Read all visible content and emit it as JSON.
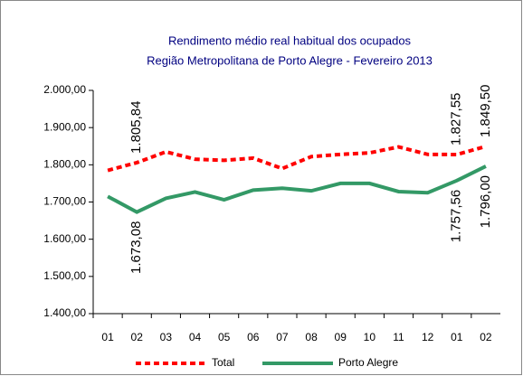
{
  "chart_data": {
    "type": "line",
    "title": "Rendimento médio real habitual dos ocupados",
    "subtitle": "Região Metropolitana de Porto Alegre - Fevereiro 2013",
    "categories": [
      "01",
      "02",
      "03",
      "04",
      "05",
      "06",
      "07",
      "08",
      "09",
      "10",
      "11",
      "12",
      "01",
      "02"
    ],
    "series": [
      {
        "name": "Total",
        "color": "#ff0000",
        "dashed": true,
        "values": [
          1785,
          1805.84,
          1835,
          1815,
          1812,
          1818,
          1790,
          1822,
          1828,
          1832,
          1848,
          1828,
          1827.55,
          1849.5
        ],
        "value_labels": [
          null,
          "1.805,84",
          null,
          null,
          null,
          null,
          null,
          null,
          null,
          null,
          null,
          null,
          "1.827,55",
          "1.849,50"
        ]
      },
      {
        "name": "Porto Alegre",
        "color": "#339966",
        "dashed": false,
        "values": [
          1715,
          1673.08,
          1710,
          1727,
          1706,
          1732,
          1737,
          1730,
          1750,
          1750,
          1728,
          1725,
          1757.56,
          1796
        ],
        "value_labels": [
          null,
          "1.673,08",
          null,
          null,
          null,
          null,
          null,
          null,
          null,
          null,
          null,
          null,
          "1.757,56",
          "1.796,00"
        ]
      }
    ],
    "ylim": [
      1400,
      2000
    ],
    "yticks": [
      {
        "value": 1400,
        "label": "1.400,00"
      },
      {
        "value": 1500,
        "label": "1.500,00"
      },
      {
        "value": 1600,
        "label": "1.600,00"
      },
      {
        "value": 1700,
        "label": "1.700,00"
      },
      {
        "value": 1800,
        "label": "1.800,00"
      },
      {
        "value": 1900,
        "label": "1.900,00"
      },
      {
        "value": 2000,
        "label": "2.000,00"
      }
    ],
    "grid": false,
    "legend": "bottom"
  }
}
